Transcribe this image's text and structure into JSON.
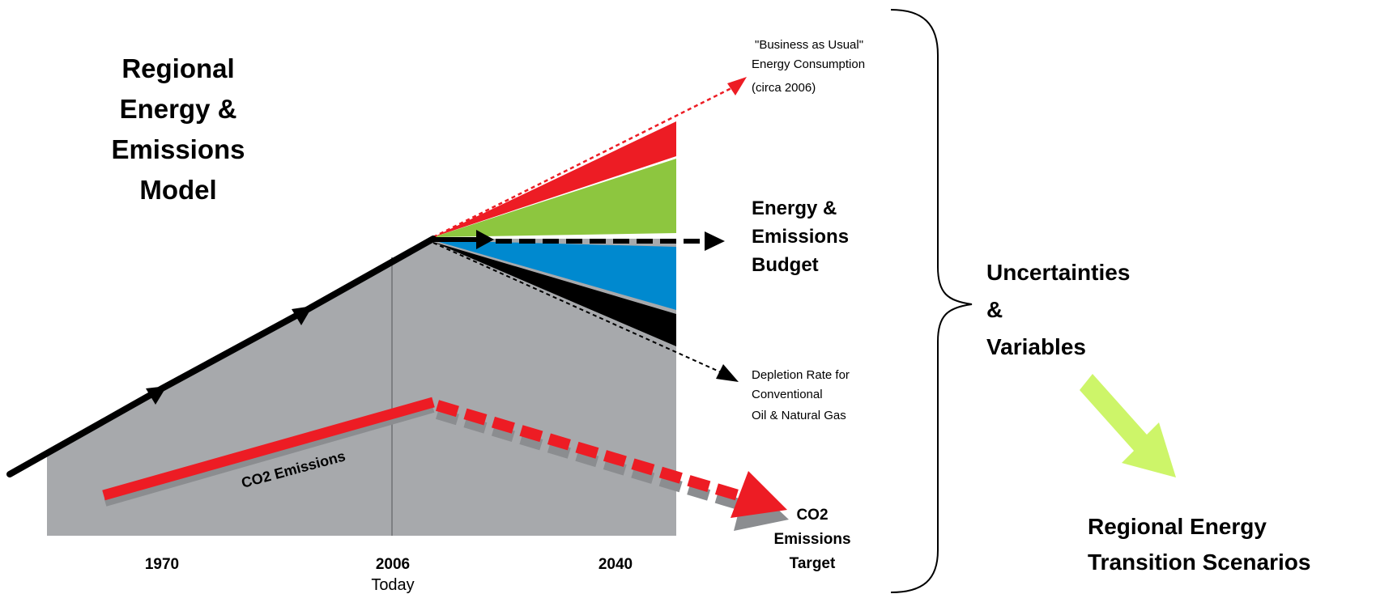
{
  "model_title": [
    "Regional",
    "Energy  &",
    "Emissions",
    "Model"
  ],
  "annotations": {
    "business_as_usual": [
      "\"Business as Usual\"",
      "Energy Consumption",
      "(circa 2006)"
    ],
    "budget": [
      "Energy &",
      "Emissions",
      "Budget"
    ],
    "depletion": [
      "Depletion Rate for",
      "Conventional",
      "Oil & Natural Gas"
    ],
    "co2_emissions": "CO2 Emissions",
    "co2_target": [
      "CO2",
      "Emissions",
      "Target"
    ]
  },
  "axis": {
    "ticks": [
      "1970",
      "2006",
      "2040"
    ],
    "today": "Today"
  },
  "right_panel": {
    "uncertainties": [
      "Uncertainties",
      "&",
      "Variables"
    ],
    "scenarios": [
      "Regional Energy",
      "Transition Scenarios"
    ]
  },
  "colors": {
    "area_gray": "#a7a9ac",
    "red": "#ed1c24",
    "green": "#8dc63f",
    "blue": "#0089cf",
    "black": "#000000",
    "arrow_lime": "#cdf569"
  },
  "icons": {
    "brace": "right-curly-brace",
    "transition_arrow": "diagonal-down-right-arrow"
  }
}
